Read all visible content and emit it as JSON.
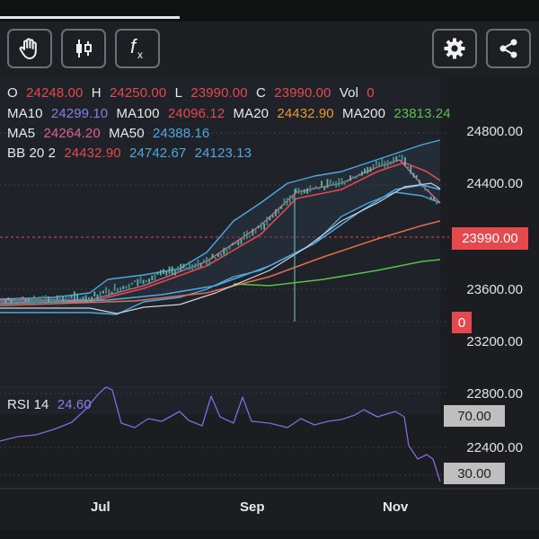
{
  "toolbar": {
    "buttons": [
      {
        "icon": "hand-icon"
      },
      {
        "icon": "candlestick-icon"
      },
      {
        "icon": "function-icon"
      },
      {
        "icon": "gear-icon"
      },
      {
        "icon": "share-icon"
      }
    ]
  },
  "legend": {
    "o_label": "O",
    "o_value": "24248.00",
    "h_label": "H",
    "h_value": "24250.00",
    "l_label": "L",
    "l_value": "23990.00",
    "c_label": "C",
    "c_value": "23990.00",
    "vol_label": "Vol",
    "vol_value": "0",
    "ma10_label": "MA10",
    "ma10_value": "24299.10",
    "ma100_label": "MA100",
    "ma100_value": "24096.12",
    "ma20_label": "MA20",
    "ma20_value": "24432.90",
    "ma200_label": "MA200",
    "ma200_value": "23813.24",
    "ma5_label": "MA5",
    "ma5_value": "24264.20",
    "ma50_label": "MA50",
    "ma50_value": "24388.16",
    "bb_label": "BB 20 2",
    "bb_mid": "24432.90",
    "bb_upper": "24742.67",
    "bb_lower": "24123.13",
    "rsi_label": "RSI 14",
    "rsi_value": "24.60"
  },
  "colors": {
    "red": "#e5484d",
    "purple": "#8a7de8",
    "orange": "#e89a2c",
    "green": "#59c04a",
    "pink": "#e0608a",
    "blue": "#4ea7e0",
    "ma100": "#e56b4e",
    "rsi": "#7a6ee0"
  },
  "price_axis": {
    "labels": [
      "24800.00",
      "24400.00",
      "23600.00",
      "23200.00",
      "22800.00",
      "22400.00"
    ],
    "current_price": "23990.00",
    "volume_tag": "0"
  },
  "rsi_axis": {
    "upper": "70.00",
    "lower": "30.00"
  },
  "time_axis": {
    "labels": [
      "Jul",
      "Sep",
      "Nov"
    ]
  }
}
